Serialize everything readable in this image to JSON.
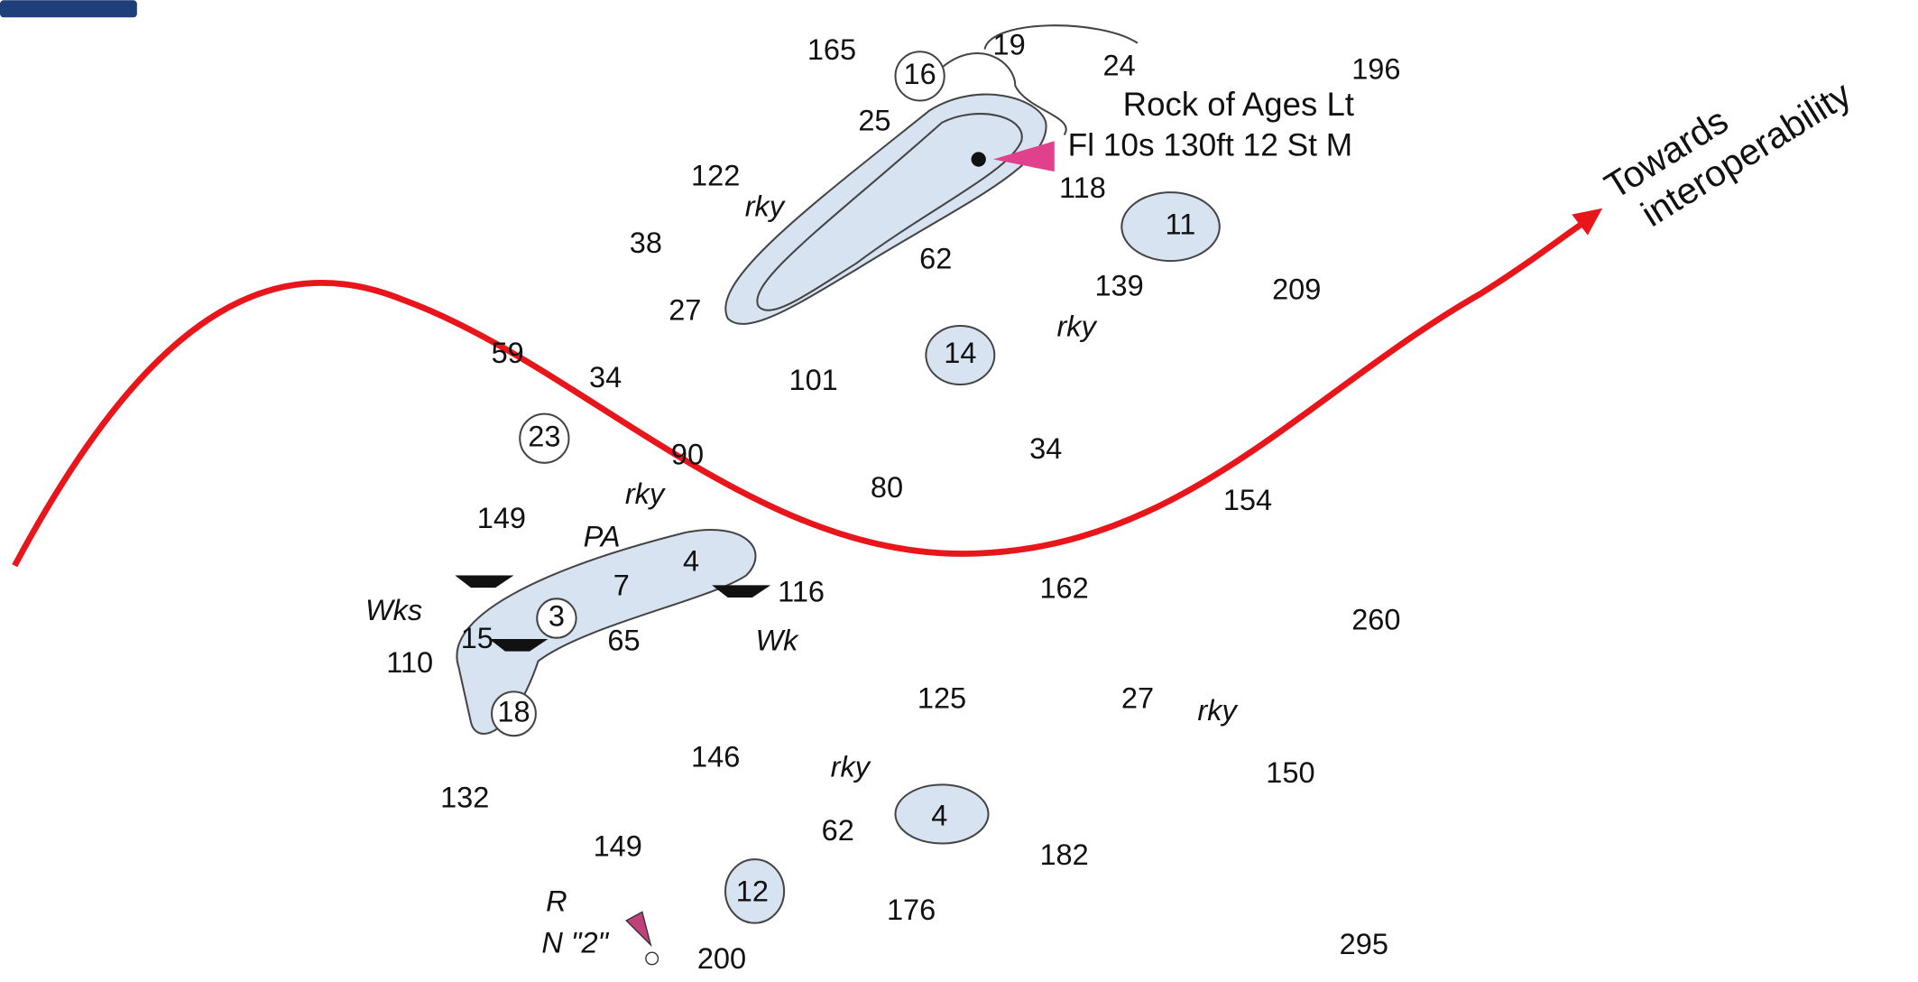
{
  "map": {
    "soundings": [
      "165",
      "16",
      "19",
      "24",
      "196",
      "25",
      "122",
      "118",
      "38",
      "62",
      "11",
      "139",
      "209",
      "27",
      "14",
      "59",
      "34",
      "101",
      "23",
      "90",
      "34",
      "80",
      "154",
      "149",
      "7",
      "4",
      "116",
      "162",
      "3",
      "15",
      "65",
      "260",
      "110",
      "18",
      "125",
      "27",
      "146",
      "150",
      "132",
      "4",
      "62",
      "149",
      "182",
      "12",
      "176",
      "295",
      "200"
    ],
    "notes": [
      "rky",
      "rky",
      "rky",
      "PA",
      "Wks",
      "Wk",
      "rky",
      "rky",
      "R"
    ],
    "buoy": "N \"2\"",
    "light": {
      "name": "Rock of Ages Lt",
      "characteristic": "Fl 10s 130ft 12 St M"
    },
    "annotation": [
      "Towards",
      "interoperability"
    ]
  }
}
